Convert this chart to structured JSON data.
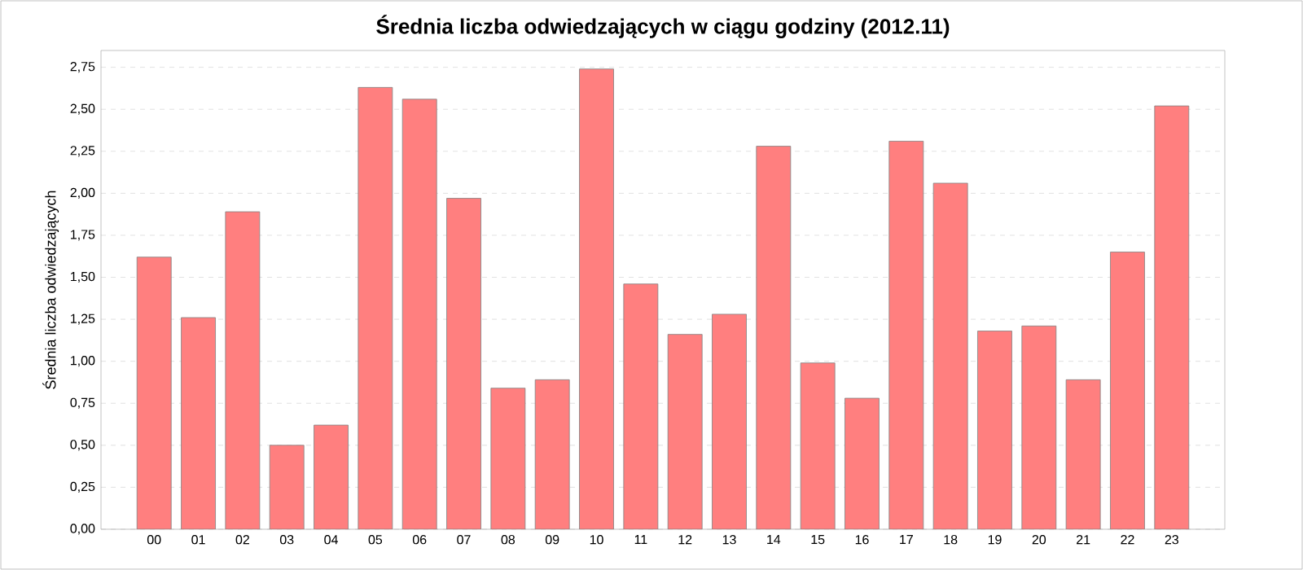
{
  "chart_data": {
    "type": "bar",
    "title": "Średnia liczba odwiedzających w ciągu godziny (2012.11)",
    "ylabel": "Średnia liczba odwiedzających",
    "categories": [
      "00",
      "01",
      "02",
      "03",
      "04",
      "05",
      "06",
      "07",
      "08",
      "09",
      "10",
      "11",
      "12",
      "13",
      "14",
      "15",
      "16",
      "17",
      "18",
      "19",
      "20",
      "21",
      "22",
      "23"
    ],
    "values": [
      1.62,
      1.26,
      1.89,
      0.5,
      0.62,
      2.63,
      2.56,
      1.97,
      0.84,
      0.89,
      2.74,
      1.46,
      1.16,
      1.28,
      2.28,
      0.99,
      0.78,
      2.31,
      2.06,
      1.18,
      1.21,
      0.89,
      1.65,
      2.52
    ],
    "color": "#ff7f7f",
    "ylim": [
      0,
      2.85
    ],
    "yticks": [
      {
        "value": 0,
        "label": "0,00"
      },
      {
        "value": 0.25,
        "label": "0,25"
      },
      {
        "value": 0.5,
        "label": "0,50"
      },
      {
        "value": 0.75,
        "label": "0,75"
      },
      {
        "value": 1,
        "label": "1,00"
      },
      {
        "value": 1.25,
        "label": "1,25"
      },
      {
        "value": 1.5,
        "label": "1,50"
      },
      {
        "value": 1.75,
        "label": "1,75"
      },
      {
        "value": 2,
        "label": "2,00"
      },
      {
        "value": 2.25,
        "label": "2,25"
      },
      {
        "value": 2.5,
        "label": "2,50"
      },
      {
        "value": 2.75,
        "label": "2,75"
      }
    ],
    "grid": "y"
  }
}
